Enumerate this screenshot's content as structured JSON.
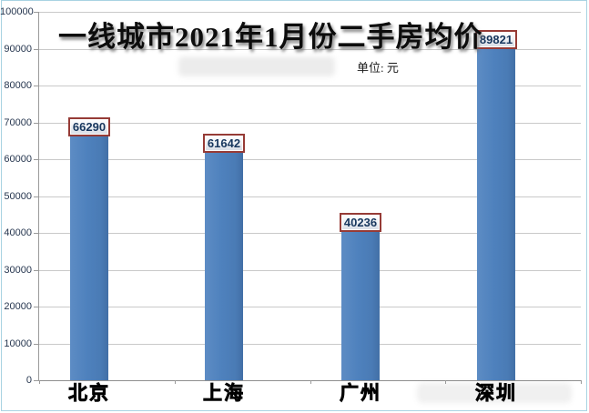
{
  "chart": {
    "title": "一线城市2021年1月份二手房均价",
    "unit_label": "单位: 元"
  },
  "chart_data": {
    "type": "bar",
    "title": "一线城市2021年1月份二手房均价",
    "subtitle": "单位: 元",
    "categories": [
      "北京",
      "上海",
      "广州",
      "深圳"
    ],
    "values": [
      66290,
      61642,
      40236,
      89821
    ],
    "data_labels": [
      "66290",
      "61642",
      "40236",
      "89821"
    ],
    "xlabel": "",
    "ylabel": "元",
    "ylim": [
      0,
      100000
    ],
    "ytick_step": 10000,
    "grid": true,
    "legend": false,
    "legend_position": "none",
    "colors": {
      "bar_fill": "#4e81bd",
      "value_box_border": "#963b36",
      "value_text": "#17365d",
      "gridline": "#c9c9c9",
      "axis_line": "#9a9a9a",
      "frame_border": "#a9d3e2",
      "title_text": "#0d0d0d"
    }
  }
}
